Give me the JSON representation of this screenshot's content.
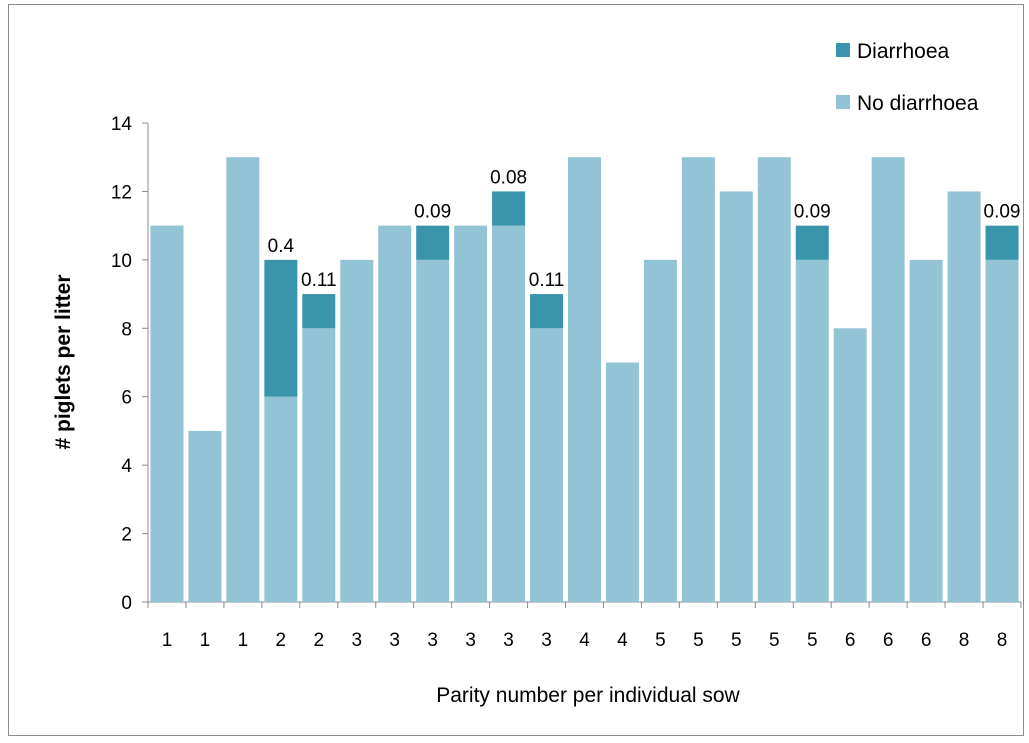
{
  "chart_data": {
    "type": "bar",
    "stacked": true,
    "categories": [
      "1",
      "1",
      "1",
      "2",
      "2",
      "3",
      "3",
      "3",
      "3",
      "3",
      "3",
      "4",
      "4",
      "5",
      "5",
      "5",
      "5",
      "5",
      "6",
      "6",
      "6",
      "8",
      "8"
    ],
    "series": [
      {
        "name": "No diarrhoea",
        "color": "#93c4d6",
        "values": [
          11,
          5,
          13,
          6,
          8,
          10,
          11,
          10,
          11,
          11,
          8,
          13,
          7,
          10,
          13,
          12,
          13,
          10,
          8,
          13,
          10,
          12,
          10
        ]
      },
      {
        "name": "Diarrhoea",
        "color": "#3a95ac",
        "values": [
          0,
          0,
          0,
          4,
          1,
          0,
          0,
          1,
          0,
          1,
          1,
          0,
          0,
          0,
          0,
          0,
          0,
          1,
          0,
          0,
          0,
          0,
          1
        ]
      }
    ],
    "data_labels": [
      "",
      "",
      "",
      "0.4",
      "0.11",
      "",
      "",
      "0.09",
      "",
      "0.08",
      "0.11",
      "",
      "",
      "",
      "",
      "",
      "",
      "0.09",
      "",
      "",
      "",
      "",
      "0.09"
    ],
    "xlabel": "Parity number per individual sow",
    "ylabel": "# piglets per litter",
    "ylim": [
      0,
      14
    ],
    "yticks": [
      0,
      2,
      4,
      6,
      8,
      10,
      12,
      14
    ],
    "legend_position": "top-right",
    "grid": false
  }
}
